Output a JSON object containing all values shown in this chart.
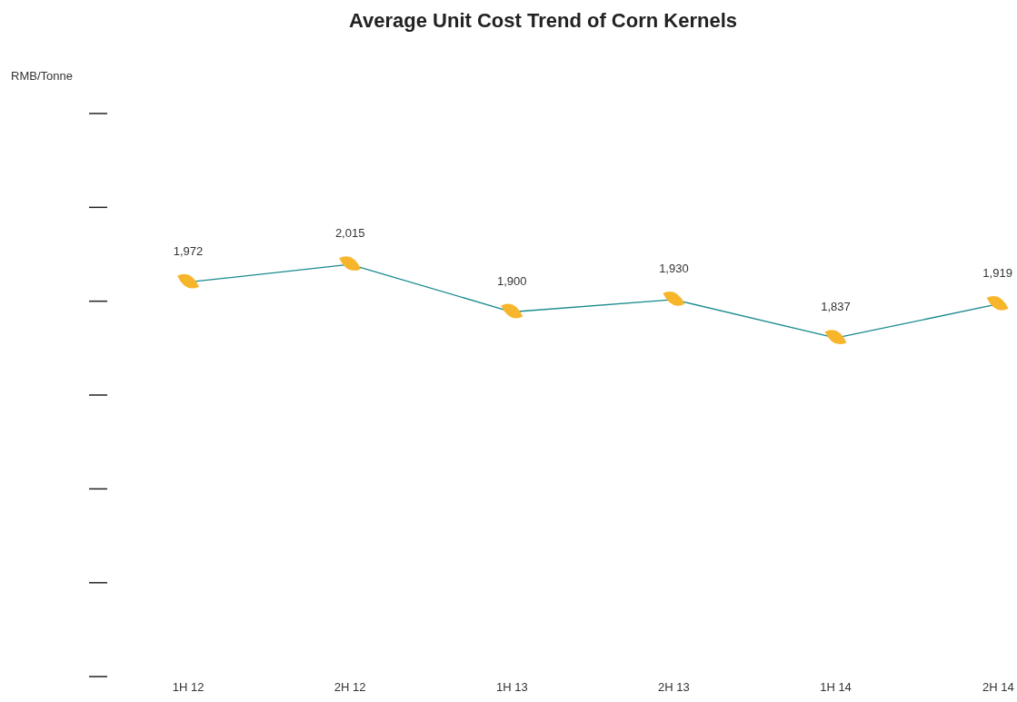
{
  "chart_data": {
    "type": "line",
    "title": "Average Unit Cost Trend of Corn Kernels",
    "annotations": [
      "RMB/Tonne"
    ],
    "categories": [
      "1H 12",
      "2H 12",
      "1H 13",
      "2H 13",
      "1H 14",
      "2H 14"
    ],
    "series": [
      {
        "color": "#1a8a8e",
        "colors": [
          "#f7b52c",
          "#f7b52c",
          "#f7b52c",
          "#f7b52c",
          "#f7b52c",
          "#f7b52c"
        ],
        "values": [
          1972,
          2015,
          1900,
          1930,
          1837,
          1919
        ],
        "value_labels": [
          "1,972",
          "2,015",
          "1,900",
          "1,930",
          "1,837",
          "1,919"
        ]
      }
    ],
    "marker": "diamond",
    "line_style": "solid"
  }
}
